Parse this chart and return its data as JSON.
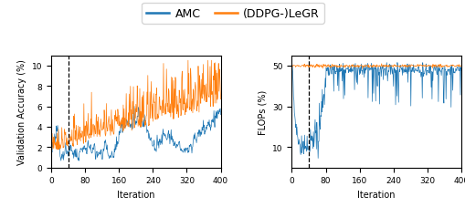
{
  "n_points": 400,
  "dashed_line_x": 40,
  "left_ylim": [
    0,
    11
  ],
  "left_yticks": [
    0,
    2,
    4,
    6,
    8,
    10
  ],
  "right_ylim": [
    0,
    55
  ],
  "right_yticks": [
    10,
    30,
    50
  ],
  "xlim": [
    0,
    400
  ],
  "xticks": [
    0,
    80,
    160,
    240,
    320,
    400
  ],
  "xlabel": "Iteration",
  "left_ylabel": "Validation Accuracy (%)",
  "right_ylabel": "FLOPs (%)",
  "amc_color": "#1f77b4",
  "legr_color": "#ff7f0e",
  "legend_labels": [
    "AMC",
    "(DDPG-)LeGR"
  ],
  "label_fontsize": 7,
  "tick_fontsize": 6.5,
  "legend_fontsize": 9,
  "linewidth": 0.5,
  "figsize": [
    5.1,
    2.28
  ],
  "dpi": 100
}
